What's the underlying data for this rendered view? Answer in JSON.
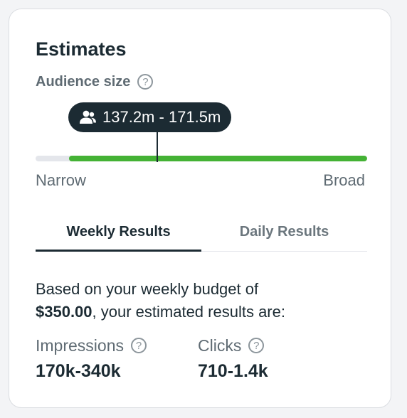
{
  "estimates": {
    "title": "Estimates",
    "audience": {
      "label": "Audience size",
      "range_text": "137.2m - 171.5m",
      "scale_min_label": "Narrow",
      "scale_max_label": "Broad",
      "fill_start_fraction": 0.1,
      "marker_fraction": 0.366,
      "colors": {
        "fill": "#44b235",
        "track": "#e4e6eb",
        "tooltip": "#1c2b33"
      }
    },
    "tabs": [
      {
        "label": "Weekly Results",
        "active": true
      },
      {
        "label": "Daily Results",
        "active": false
      }
    ],
    "description": {
      "prefix": "Based on your weekly budget of",
      "budget": "$350.00",
      "suffix": ", your estimated results are:"
    },
    "metrics": [
      {
        "label": "Impressions",
        "value": "170k-340k"
      },
      {
        "label": "Clicks",
        "value": "710-1.4k"
      }
    ],
    "icons": {
      "help": "help-circle-icon",
      "people": "people-icon"
    },
    "help_glyph": "?"
  }
}
